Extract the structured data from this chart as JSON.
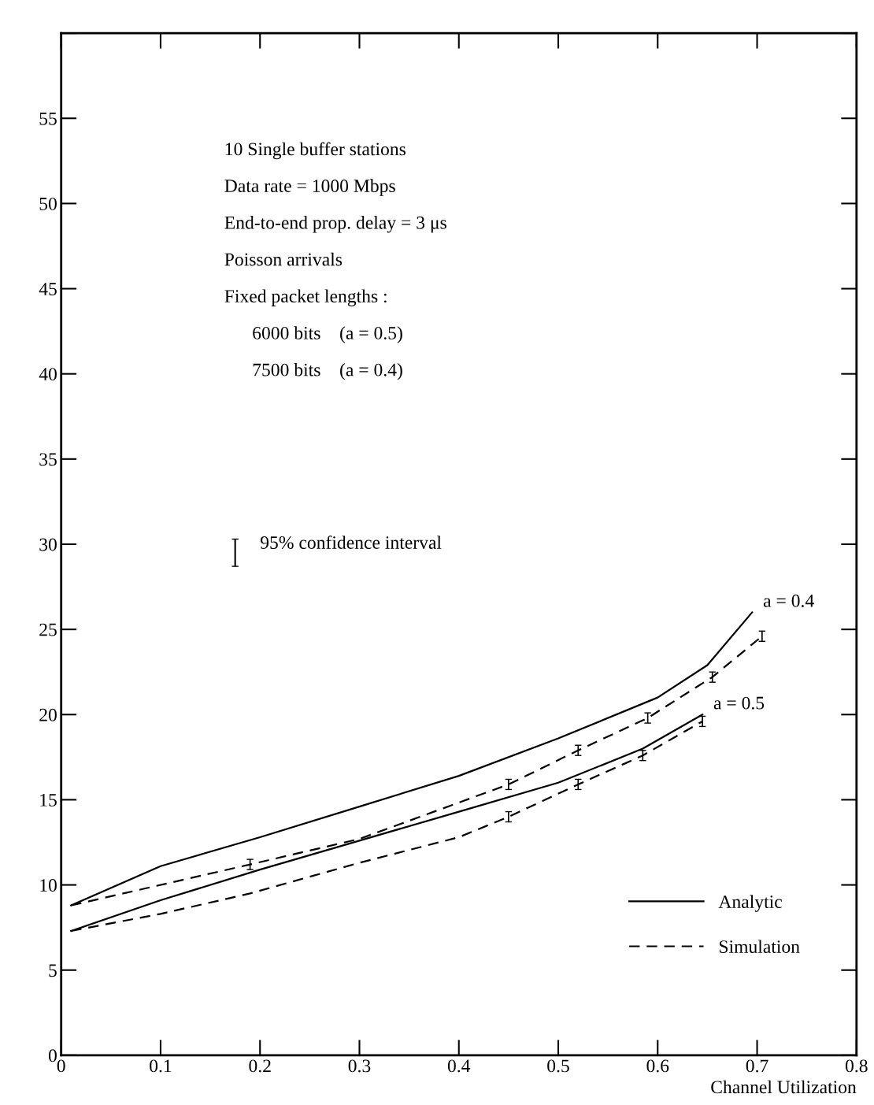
{
  "chart_data": {
    "type": "line",
    "xlabel": "Channel Utilization",
    "xlim": [
      0,
      0.8
    ],
    "xticks": [
      0,
      0.1,
      0.2,
      0.3,
      0.4,
      0.5,
      0.6,
      0.7,
      0.8
    ],
    "ylim": [
      0,
      60
    ],
    "yticks": [
      0,
      5,
      10,
      15,
      20,
      25,
      30,
      35,
      40,
      45,
      50,
      55,
      {
        "value": 60,
        "label": null
      }
    ],
    "grid": false,
    "legend": "bottom right",
    "marker": "none",
    "series": [
      {
        "name": "Analytic",
        "color": "#000000",
        "line_style": "solid",
        "x": [
          0.01,
          0.1,
          0.2,
          0.3,
          0.4,
          0.5,
          0.6,
          0.65,
          0.695
        ],
        "values": [
          8.8,
          11.1,
          12.8,
          14.6,
          16.4,
          18.6,
          21.0,
          22.9,
          26.0
        ]
      },
      {
        "name": "Simulation",
        "color": "#000000",
        "line_style": "dashed",
        "x": [
          0.01,
          0.19,
          0.3,
          0.45,
          0.52,
          0.59,
          0.655,
          0.705
        ],
        "values": [
          8.8,
          11.2,
          12.7,
          15.9,
          17.9,
          19.8,
          22.2,
          24.6
        ],
        "errors": [
          null,
          0.3,
          null,
          0.3,
          0.3,
          0.3,
          0.3,
          0.3
        ]
      },
      {
        "color": "#000000",
        "line_style": "solid",
        "x": [
          0.01,
          0.1,
          0.2,
          0.3,
          0.4,
          0.5,
          0.585,
          0.645
        ],
        "values": [
          7.3,
          9.1,
          10.9,
          12.6,
          14.3,
          16.0,
          18.0,
          20.0
        ]
      },
      {
        "color": "#000000",
        "line_style": "dashed",
        "x": [
          0.01,
          0.1,
          0.19,
          0.3,
          0.4,
          0.45,
          0.52,
          0.585,
          0.645
        ],
        "values": [
          7.3,
          8.3,
          9.5,
          11.3,
          12.8,
          14.0,
          15.9,
          17.6,
          19.6
        ],
        "errors": [
          null,
          null,
          null,
          null,
          null,
          0.3,
          0.3,
          0.3,
          0.3
        ]
      }
    ],
    "annotations": [
      "10 Single buffer stations",
      "Data rate = 1000 Mbps",
      "End-to-end prop. delay = 3 μs",
      "Poisson arrivals",
      "Fixed packet lengths :",
      "      6000 bits    (a = 0.5)",
      "      7500 bits    (a = 0.4)",
      "95% confidence interval",
      {
        "text": "a = 0.4",
        "x": 0.695,
        "y": 26.0
      },
      {
        "text": "a = 0.5",
        "x": 0.645,
        "y": 20.0
      }
    ]
  }
}
